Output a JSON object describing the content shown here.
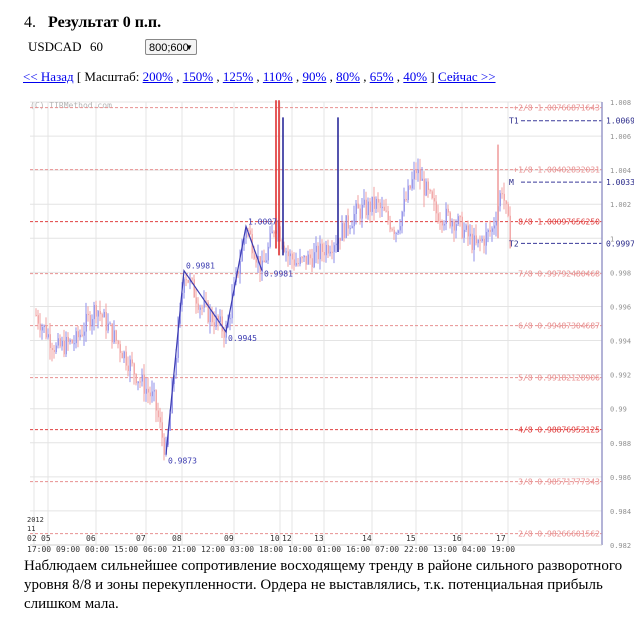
{
  "header": {
    "number": "4.",
    "title": "Результат 0 п.п."
  },
  "instrument": {
    "symbol": "USDCAD",
    "timeframe": "60"
  },
  "size_select": {
    "value": "800;600"
  },
  "nav": {
    "back": "<< Назад",
    "scale_label": "[ Масштаб:",
    "zooms": [
      "200%",
      "150%",
      "125%",
      "110%",
      "90%",
      "80%",
      "65%",
      "40%"
    ],
    "close_bracket": "]",
    "now": "Сейчас >>"
  },
  "chart_data": {
    "type": "candlestick",
    "watermark": "(C) TIRMethod.com",
    "ylim": [
      0.982,
      1.008
    ],
    "y_ticks": [
      "1.008",
      "1.006",
      "1.004",
      "1.002",
      "1",
      "0.998",
      "0.996",
      "0.994",
      "0.992",
      "0.99",
      "0.988",
      "0.986",
      "0.984",
      "0.982"
    ],
    "levels": [
      {
        "label": "+2/8 1.00766871643",
        "value": 1.00766871643,
        "color": "#e89090"
      },
      {
        "label": "+1/8 1.00402832031",
        "value": 1.00402832031,
        "color": "#e89090"
      },
      {
        "label": "8/8 1.00097656250",
        "value": 1.0009765625,
        "color": "#e04040"
      },
      {
        "label": "7/8 0.99792480468",
        "value": 0.99792480468,
        "color": "#e89090"
      },
      {
        "label": "6/8 0.99487304687",
        "value": 0.99487304687,
        "color": "#e89090"
      },
      {
        "label": "5/8 0.99182128906",
        "value": 0.99182128906,
        "color": "#e89090"
      },
      {
        "label": "4/8 0.98876953125",
        "value": 0.98876953125,
        "color": "#e04040"
      },
      {
        "label": "3/8 0.98571777343",
        "value": 0.98571777343,
        "color": "#e89090"
      },
      {
        "label": "2/8 0.98266601562",
        "value": 0.98266601562,
        "color": "#e89090"
      }
    ],
    "markers": [
      {
        "name": "T1",
        "value": 1.0069
      },
      {
        "name": "M",
        "value": 1.0033
      },
      {
        "name": "T2",
        "value": 0.9997
      }
    ],
    "marker_values": [
      "1.0069",
      "1.0033",
      "0.9997"
    ],
    "swing_points": [
      {
        "label": "0.9873",
        "value": 0.9873
      },
      {
        "label": "0.9981",
        "value": 0.9981
      },
      {
        "label": "0.9945",
        "value": 0.9945
      },
      {
        "label": "1.0007",
        "value": 1.0007
      },
      {
        "label": "0.9981",
        "value": 0.9981
      }
    ],
    "x_days": [
      "02",
      "05",
      "06",
      "07",
      "08",
      "09",
      "10",
      "12",
      "13",
      "14",
      "15",
      "16",
      "17"
    ],
    "x_times": [
      "17:00",
      "09:00",
      "00:00",
      "15:00",
      "06:00",
      "21:00",
      "12:00",
      "03:00",
      "18:00",
      "10:00",
      "01:00",
      "16:00",
      "07:00",
      "22:00",
      "13:00",
      "04:00",
      "19:00"
    ],
    "year": "2012",
    "month": "11",
    "colors": {
      "up": "#8f8fe8",
      "down": "#f0a0a0",
      "spike_red": "#e03030",
      "spike_blue": "#2a2a9a",
      "swing": "#3b3bb0",
      "grid": "#e4e4e4"
    }
  },
  "description": "Наблюдаем сильнейшее сопротивление восходящему тренду в районе сильного разворотного уровня 8/8 и зоны перекупленности. Ордера не выставлялись, т.к. потенциальная прибыль слишком мала."
}
